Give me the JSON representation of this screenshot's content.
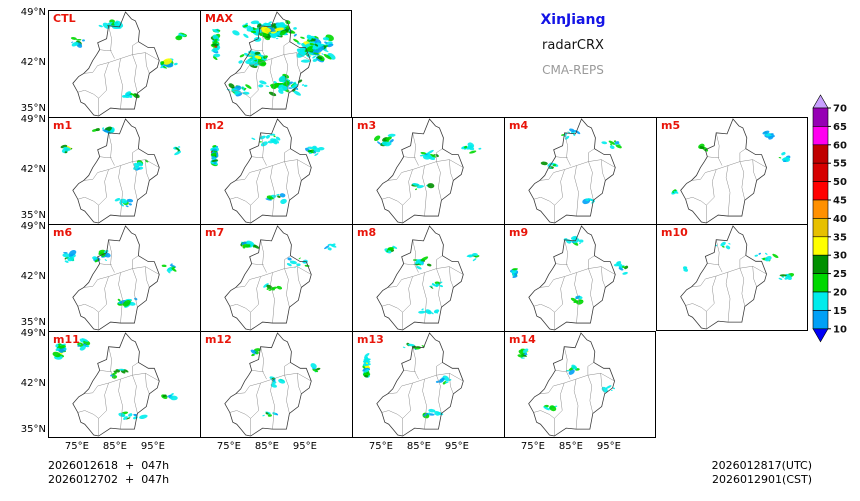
{
  "legend": {
    "region": "XinJiang",
    "product": "radarCRX",
    "system": "CMA-REPS"
  },
  "colors": {
    "panel_label": "#E8150A",
    "region_title": "#1414E6",
    "product_title": "#141414",
    "system_title": "#9A9A9A",
    "boundary": "#3a3a3a",
    "inner_boundary": "#8a8a8a"
  },
  "axis": {
    "lat_ticks": [
      "49°N",
      "42°N",
      "35°N"
    ],
    "lon_ticks": [
      "75°E",
      "85°E",
      "95°E"
    ]
  },
  "colorbar": {
    "tick_labels": [
      "70",
      "65",
      "60",
      "55",
      "50",
      "45",
      "40",
      "35",
      "30",
      "25",
      "20",
      "15",
      "10"
    ],
    "segment_colors_top_to_bottom": [
      "#9600B4",
      "#FF00F0",
      "#C00000",
      "#D60000",
      "#FF0000",
      "#FF9000",
      "#E7C000",
      "#FFFF00",
      "#019000",
      "#00D800",
      "#00ECEC",
      "#01A0F6"
    ],
    "arrow_top_color": "#C8A0FF",
    "arrow_bottom_color": "#0000F6"
  },
  "footer": {
    "init_line1": "2026012618  +  047h",
    "init_line2": "2026012702  +  047h",
    "valid_utc": "2026012817(UTC)",
    "valid_cst": "2026012901(CST)"
  },
  "panels": [
    {
      "label": "CTL",
      "row": 0,
      "col": 0,
      "echo_clusters": [
        [
          0.42,
          0.13,
          0.12,
          0.05,
          14,
          4,
          0
        ],
        [
          0.2,
          0.3,
          0.06,
          0.05,
          8,
          3,
          0
        ],
        [
          0.78,
          0.5,
          0.08,
          0.08,
          14,
          4,
          0.2
        ],
        [
          0.55,
          0.8,
          0.1,
          0.04,
          10,
          3,
          0
        ],
        [
          0.88,
          0.25,
          0.05,
          0.05,
          6,
          3,
          0
        ]
      ]
    },
    {
      "label": "MAX",
      "row": 0,
      "col": 1,
      "echo_clusters": [
        [
          0.1,
          0.3,
          0.02,
          0.17,
          40,
          3,
          0.8
        ],
        [
          0.45,
          0.18,
          0.25,
          0.1,
          120,
          4,
          0.3
        ],
        [
          0.75,
          0.35,
          0.16,
          0.18,
          90,
          4,
          0.25
        ],
        [
          0.35,
          0.45,
          0.12,
          0.1,
          40,
          4,
          0.2
        ],
        [
          0.55,
          0.7,
          0.2,
          0.1,
          45,
          4,
          0.1
        ],
        [
          0.25,
          0.75,
          0.1,
          0.07,
          18,
          3,
          0
        ]
      ]
    },
    {
      "label": "m1",
      "row": 1,
      "col": 0,
      "echo_clusters": [
        [
          0.38,
          0.12,
          0.1,
          0.04,
          10,
          3.5,
          0
        ],
        [
          0.12,
          0.28,
          0.04,
          0.05,
          6,
          3,
          0.3
        ],
        [
          0.6,
          0.45,
          0.07,
          0.06,
          8,
          3,
          0
        ],
        [
          0.85,
          0.3,
          0.06,
          0.06,
          7,
          3,
          0
        ],
        [
          0.5,
          0.8,
          0.1,
          0.04,
          9,
          3,
          0
        ]
      ]
    },
    {
      "label": "m2",
      "row": 1,
      "col": 1,
      "echo_clusters": [
        [
          0.09,
          0.33,
          0.013,
          0.16,
          34,
          3,
          0.85
        ],
        [
          0.45,
          0.2,
          0.12,
          0.06,
          12,
          3,
          0
        ],
        [
          0.75,
          0.3,
          0.1,
          0.08,
          12,
          3,
          0
        ],
        [
          0.5,
          0.75,
          0.12,
          0.05,
          10,
          3,
          0
        ]
      ]
    },
    {
      "label": "m3",
      "row": 1,
      "col": 2,
      "echo_clusters": [
        [
          0.22,
          0.2,
          0.08,
          0.07,
          10,
          3.5,
          0
        ],
        [
          0.5,
          0.35,
          0.1,
          0.07,
          12,
          3.5,
          0
        ],
        [
          0.78,
          0.28,
          0.08,
          0.06,
          10,
          3,
          0
        ],
        [
          0.45,
          0.65,
          0.1,
          0.05,
          8,
          3,
          0
        ]
      ]
    },
    {
      "label": "m4",
      "row": 1,
      "col": 3,
      "echo_clusters": [
        [
          0.42,
          0.15,
          0.1,
          0.05,
          9,
          3,
          0
        ],
        [
          0.72,
          0.25,
          0.08,
          0.06,
          9,
          3,
          0
        ],
        [
          0.3,
          0.45,
          0.06,
          0.05,
          6,
          3,
          0
        ],
        [
          0.55,
          0.78,
          0.08,
          0.04,
          6,
          3,
          0
        ]
      ]
    },
    {
      "label": "m5",
      "row": 1,
      "col": 4,
      "echo_clusters": [
        [
          0.75,
          0.15,
          0.08,
          0.05,
          8,
          3,
          0
        ],
        [
          0.85,
          0.38,
          0.06,
          0.06,
          7,
          3,
          0
        ],
        [
          0.3,
          0.3,
          0.07,
          0.05,
          5,
          2.5,
          0
        ],
        [
          0.12,
          0.7,
          0.04,
          0.04,
          4,
          2.5,
          0
        ]
      ]
    },
    {
      "label": "m6",
      "row": 2,
      "col": 0,
      "echo_clusters": [
        [
          0.13,
          0.3,
          0.05,
          0.08,
          12,
          3.5,
          0.3
        ],
        [
          0.35,
          0.3,
          0.08,
          0.06,
          10,
          3,
          0
        ],
        [
          0.5,
          0.72,
          0.12,
          0.06,
          12,
          3.5,
          0
        ],
        [
          0.8,
          0.4,
          0.07,
          0.06,
          7,
          3,
          0
        ]
      ]
    },
    {
      "label": "m7",
      "row": 2,
      "col": 1,
      "echo_clusters": [
        [
          0.3,
          0.2,
          0.1,
          0.05,
          14,
          3.5,
          0.3
        ],
        [
          0.65,
          0.35,
          0.1,
          0.07,
          10,
          3,
          0
        ],
        [
          0.45,
          0.6,
          0.08,
          0.05,
          7,
          3,
          0
        ],
        [
          0.85,
          0.2,
          0.05,
          0.04,
          5,
          3,
          0
        ]
      ]
    },
    {
      "label": "m8",
      "row": 2,
      "col": 2,
      "echo_clusters": [
        [
          0.45,
          0.35,
          0.09,
          0.08,
          14,
          3.5,
          0.3
        ],
        [
          0.25,
          0.25,
          0.07,
          0.06,
          8,
          3,
          0
        ],
        [
          0.55,
          0.55,
          0.08,
          0.06,
          9,
          3,
          0
        ],
        [
          0.5,
          0.82,
          0.1,
          0.04,
          8,
          3,
          0
        ],
        [
          0.8,
          0.3,
          0.06,
          0.05,
          6,
          3,
          0
        ]
      ]
    },
    {
      "label": "m9",
      "row": 2,
      "col": 3,
      "echo_clusters": [
        [
          0.06,
          0.45,
          0.015,
          0.06,
          16,
          2.5,
          0.95
        ],
        [
          0.45,
          0.15,
          0.1,
          0.05,
          10,
          3,
          0
        ],
        [
          0.78,
          0.4,
          0.08,
          0.07,
          9,
          3,
          0
        ],
        [
          0.5,
          0.7,
          0.08,
          0.05,
          6,
          3,
          0
        ]
      ]
    },
    {
      "label": "m10",
      "row": 2,
      "col": 4,
      "echo_clusters": [
        [
          0.72,
          0.3,
          0.08,
          0.06,
          8,
          3,
          0
        ],
        [
          0.85,
          0.5,
          0.06,
          0.05,
          6,
          3,
          0
        ],
        [
          0.45,
          0.2,
          0.07,
          0.04,
          5,
          2.5,
          0
        ],
        [
          0.2,
          0.4,
          0.04,
          0.04,
          3,
          2.5,
          0
        ]
      ]
    },
    {
      "label": "m11",
      "row": 3,
      "col": 0,
      "echo_clusters": [
        [
          0.08,
          0.17,
          0.04,
          0.1,
          26,
          3.5,
          0.8
        ],
        [
          0.22,
          0.12,
          0.06,
          0.05,
          10,
          3,
          0.3
        ],
        [
          0.45,
          0.4,
          0.09,
          0.06,
          8,
          3,
          0
        ],
        [
          0.55,
          0.8,
          0.12,
          0.05,
          10,
          3.5,
          0
        ],
        [
          0.8,
          0.6,
          0.07,
          0.05,
          6,
          3,
          0
        ]
      ]
    },
    {
      "label": "m12",
      "row": 3,
      "col": 1,
      "echo_clusters": [
        [
          0.5,
          0.45,
          0.09,
          0.07,
          9,
          3,
          0
        ],
        [
          0.35,
          0.2,
          0.07,
          0.05,
          6,
          3,
          0
        ],
        [
          0.45,
          0.78,
          0.1,
          0.04,
          7,
          3,
          0
        ],
        [
          0.75,
          0.35,
          0.06,
          0.05,
          5,
          3,
          0
        ]
      ]
    },
    {
      "label": "m13",
      "row": 3,
      "col": 2,
      "echo_clusters": [
        [
          0.09,
          0.35,
          0.014,
          0.17,
          36,
          3,
          0.9
        ],
        [
          0.4,
          0.15,
          0.1,
          0.05,
          10,
          3,
          0
        ],
        [
          0.6,
          0.45,
          0.09,
          0.06,
          8,
          3,
          0
        ],
        [
          0.5,
          0.78,
          0.1,
          0.04,
          8,
          3,
          0
        ]
      ]
    },
    {
      "label": "m14",
      "row": 3,
      "col": 3,
      "echo_clusters": [
        [
          0.13,
          0.2,
          0.04,
          0.07,
          12,
          3,
          0.5
        ],
        [
          0.45,
          0.35,
          0.08,
          0.05,
          6,
          3,
          0
        ],
        [
          0.3,
          0.72,
          0.08,
          0.04,
          6,
          3,
          0
        ],
        [
          0.7,
          0.55,
          0.06,
          0.05,
          4,
          2.5,
          0
        ]
      ]
    }
  ]
}
